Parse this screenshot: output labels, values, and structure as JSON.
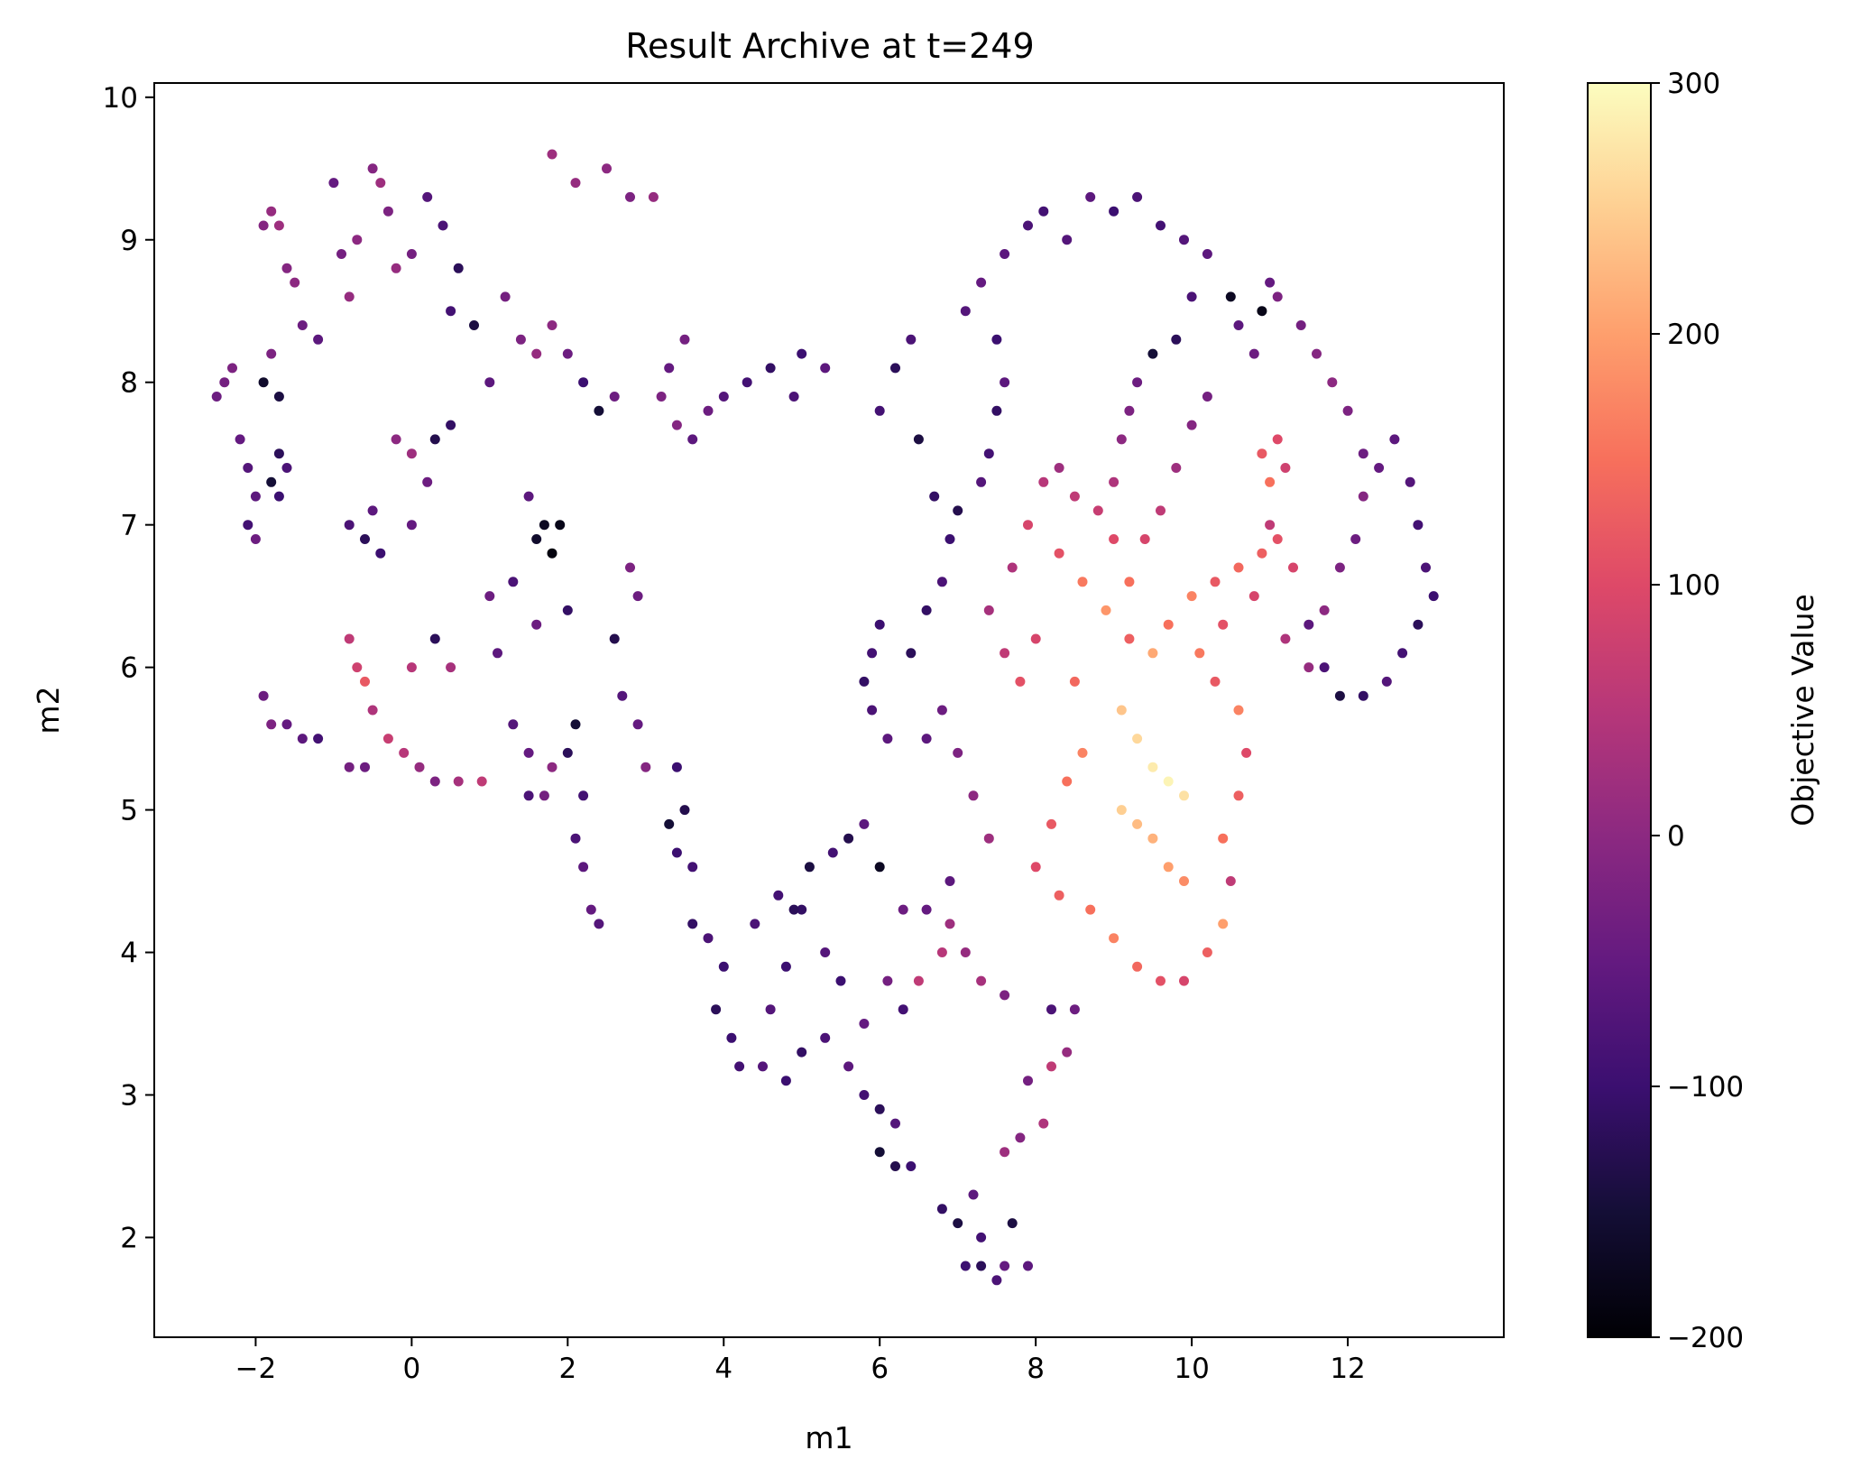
{
  "chart_data": {
    "type": "scatter",
    "title": "Result Archive at t=249",
    "xlabel": "m1",
    "ylabel": "m2",
    "xlim": [
      -3.3,
      14.0
    ],
    "ylim": [
      1.3,
      10.1
    ],
    "xticks": [
      -2,
      0,
      2,
      4,
      6,
      8,
      10,
      12
    ],
    "yticks": [
      2,
      3,
      4,
      5,
      6,
      7,
      8,
      9,
      10
    ],
    "grid": false,
    "legend": "none",
    "colormap": "magma",
    "colorbar": {
      "label": "Objective Value",
      "range": [
        -200,
        300
      ],
      "ticks": [
        -200,
        -100,
        0,
        100,
        200,
        300
      ],
      "tick_labels": [
        "−200",
        "−100",
        "0",
        "100",
        "200",
        "300"
      ]
    },
    "points": [
      [
        -2.4,
        8.0,
        -30
      ],
      [
        -2.5,
        7.9,
        -40
      ],
      [
        -2.3,
        8.1,
        -20
      ],
      [
        -2.2,
        7.6,
        -50
      ],
      [
        -2.1,
        7.4,
        -70
      ],
      [
        -2.0,
        7.2,
        -60
      ],
      [
        -2.1,
        7.0,
        -90
      ],
      [
        -2.0,
        6.9,
        -40
      ],
      [
        -1.8,
        7.3,
        -150
      ],
      [
        -1.7,
        7.5,
        -120
      ],
      [
        -1.7,
        7.2,
        -100
      ],
      [
        -1.6,
        7.4,
        -80
      ],
      [
        -1.9,
        8.0,
        -160
      ],
      [
        -1.7,
        7.9,
        -140
      ],
      [
        -1.8,
        8.2,
        -20
      ],
      [
        -1.9,
        9.1,
        -10
      ],
      [
        -1.8,
        9.2,
        10
      ],
      [
        -1.7,
        9.1,
        20
      ],
      [
        -1.6,
        8.8,
        -10
      ],
      [
        -1.5,
        8.7,
        0
      ],
      [
        -1.4,
        8.4,
        -40
      ],
      [
        -1.2,
        8.3,
        -60
      ],
      [
        -1.0,
        9.4,
        -50
      ],
      [
        -0.9,
        8.9,
        -30
      ],
      [
        -0.8,
        8.6,
        10
      ],
      [
        -0.7,
        9.0,
        0
      ],
      [
        -0.5,
        9.5,
        -10
      ],
      [
        -0.4,
        9.4,
        20
      ],
      [
        -0.3,
        9.2,
        -20
      ],
      [
        -0.2,
        8.8,
        10
      ],
      [
        0.0,
        8.9,
        -30
      ],
      [
        0.2,
        9.3,
        -70
      ],
      [
        0.4,
        9.1,
        -80
      ],
      [
        0.5,
        8.5,
        -90
      ],
      [
        0.6,
        8.8,
        -120
      ],
      [
        0.8,
        8.4,
        -140
      ],
      [
        1.0,
        8.0,
        -60
      ],
      [
        1.2,
        8.6,
        -30
      ],
      [
        1.4,
        8.3,
        -20
      ],
      [
        1.6,
        8.2,
        10
      ],
      [
        1.8,
        8.4,
        0
      ],
      [
        2.0,
        8.2,
        -40
      ],
      [
        2.2,
        8.0,
        -100
      ],
      [
        2.4,
        7.8,
        -150
      ],
      [
        2.6,
        7.9,
        -40
      ],
      [
        1.8,
        9.6,
        20
      ],
      [
        2.1,
        9.4,
        10
      ],
      [
        2.5,
        9.5,
        0
      ],
      [
        2.8,
        9.3,
        -20
      ],
      [
        3.1,
        9.3,
        10
      ],
      [
        -0.5,
        7.1,
        -60
      ],
      [
        -0.6,
        6.9,
        -120
      ],
      [
        -0.4,
        6.8,
        -100
      ],
      [
        -0.8,
        7.0,
        -80
      ],
      [
        0.0,
        7.0,
        -50
      ],
      [
        0.3,
        7.6,
        -130
      ],
      [
        0.5,
        7.7,
        -110
      ],
      [
        0.2,
        7.3,
        -40
      ],
      [
        -0.2,
        7.6,
        0
      ],
      [
        0.0,
        7.5,
        20
      ],
      [
        -0.8,
        6.2,
        60
      ],
      [
        -0.7,
        6.0,
        80
      ],
      [
        -0.6,
        5.9,
        120
      ],
      [
        -0.5,
        5.7,
        40
      ],
      [
        -0.3,
        5.5,
        70
      ],
      [
        -0.1,
        5.4,
        50
      ],
      [
        0.1,
        5.3,
        10
      ],
      [
        0.3,
        5.2,
        -20
      ],
      [
        0.6,
        5.2,
        30
      ],
      [
        0.9,
        5.2,
        60
      ],
      [
        -1.9,
        5.8,
        -40
      ],
      [
        -1.8,
        5.6,
        -20
      ],
      [
        -1.6,
        5.6,
        -50
      ],
      [
        -1.4,
        5.5,
        -60
      ],
      [
        -1.2,
        5.5,
        -90
      ],
      [
        -0.8,
        5.3,
        -30
      ],
      [
        -0.6,
        5.3,
        -40
      ],
      [
        0.0,
        6.0,
        50
      ],
      [
        0.3,
        6.2,
        -120
      ],
      [
        0.5,
        6.0,
        30
      ],
      [
        1.0,
        6.5,
        -40
      ],
      [
        1.1,
        6.1,
        -60
      ],
      [
        1.3,
        5.6,
        -70
      ],
      [
        1.5,
        5.4,
        -50
      ],
      [
        1.5,
        5.1,
        -80
      ],
      [
        1.7,
        5.1,
        -30
      ],
      [
        1.8,
        5.3,
        0
      ],
      [
        2.0,
        5.4,
        -120
      ],
      [
        2.1,
        5.6,
        -150
      ],
      [
        2.2,
        5.1,
        -90
      ],
      [
        1.7,
        7.0,
        -170
      ],
      [
        1.6,
        6.9,
        -160
      ],
      [
        1.8,
        6.8,
        -190
      ],
      [
        1.9,
        7.0,
        -180
      ],
      [
        1.5,
        7.2,
        -60
      ],
      [
        1.3,
        6.6,
        -80
      ],
      [
        2.0,
        6.4,
        -110
      ],
      [
        1.6,
        6.3,
        -40
      ],
      [
        2.1,
        4.8,
        -80
      ],
      [
        2.2,
        4.6,
        -60
      ],
      [
        2.3,
        4.3,
        -50
      ],
      [
        2.4,
        4.2,
        -70
      ],
      [
        2.8,
        6.7,
        -20
      ],
      [
        2.9,
        6.5,
        -40
      ],
      [
        2.6,
        6.2,
        -130
      ],
      [
        2.7,
        5.8,
        -70
      ],
      [
        2.9,
        5.6,
        -50
      ],
      [
        3.0,
        5.3,
        -10
      ],
      [
        3.3,
        8.1,
        -50
      ],
      [
        3.5,
        8.3,
        -30
      ],
      [
        3.2,
        7.9,
        -20
      ],
      [
        3.4,
        7.7,
        -10
      ],
      [
        3.6,
        7.6,
        -60
      ],
      [
        3.8,
        7.8,
        -40
      ],
      [
        4.0,
        7.9,
        -70
      ],
      [
        4.3,
        8.0,
        -90
      ],
      [
        4.6,
        8.1,
        -110
      ],
      [
        5.0,
        8.2,
        -100
      ],
      [
        5.3,
        8.1,
        -60
      ],
      [
        4.9,
        7.9,
        -80
      ],
      [
        3.4,
        5.3,
        -100
      ],
      [
        3.3,
        4.9,
        -150
      ],
      [
        3.5,
        5.0,
        -130
      ],
      [
        3.4,
        4.7,
        -100
      ],
      [
        3.6,
        4.6,
        -90
      ],
      [
        3.6,
        4.2,
        -110
      ],
      [
        3.8,
        4.1,
        -80
      ],
      [
        4.0,
        3.9,
        -100
      ],
      [
        3.9,
        3.6,
        -120
      ],
      [
        4.1,
        3.4,
        -100
      ],
      [
        4.2,
        3.2,
        -90
      ],
      [
        4.5,
        3.2,
        -70
      ],
      [
        4.8,
        3.1,
        -100
      ],
      [
        5.0,
        3.3,
        -110
      ],
      [
        5.3,
        3.4,
        -80
      ],
      [
        5.6,
        3.2,
        -60
      ],
      [
        5.8,
        3.0,
        -90
      ],
      [
        6.0,
        2.9,
        -120
      ],
      [
        6.2,
        2.8,
        -70
      ],
      [
        6.0,
        2.6,
        -150
      ],
      [
        6.2,
        2.5,
        -130
      ],
      [
        6.4,
        2.5,
        -100
      ],
      [
        6.8,
        2.2,
        -110
      ],
      [
        7.0,
        2.1,
        -140
      ],
      [
        7.2,
        2.3,
        -60
      ],
      [
        7.3,
        2.0,
        -90
      ],
      [
        7.1,
        1.8,
        -100
      ],
      [
        7.3,
        1.8,
        -120
      ],
      [
        7.5,
        1.7,
        -80
      ],
      [
        7.6,
        1.8,
        -50
      ],
      [
        7.7,
        2.1,
        -140
      ],
      [
        7.9,
        1.8,
        -60
      ],
      [
        7.6,
        2.6,
        20
      ],
      [
        7.8,
        2.7,
        -10
      ],
      [
        8.1,
        2.8,
        40
      ],
      [
        7.9,
        3.1,
        -30
      ],
      [
        8.2,
        3.2,
        60
      ],
      [
        8.4,
        3.3,
        10
      ],
      [
        8.5,
        3.6,
        -40
      ],
      [
        8.2,
        3.6,
        -80
      ],
      [
        6.9,
        4.2,
        20
      ],
      [
        6.8,
        4.0,
        50
      ],
      [
        7.1,
        4.0,
        10
      ],
      [
        7.3,
        3.8,
        30
      ],
      [
        7.6,
        3.7,
        -20
      ],
      [
        6.5,
        3.8,
        60
      ],
      [
        6.3,
        3.6,
        -90
      ],
      [
        6.1,
        3.8,
        -30
      ],
      [
        5.8,
        3.5,
        -50
      ],
      [
        5.5,
        3.8,
        -100
      ],
      [
        5.3,
        4.0,
        -70
      ],
      [
        5.0,
        4.3,
        -110
      ],
      [
        5.1,
        4.6,
        -140
      ],
      [
        5.4,
        4.7,
        -90
      ],
      [
        5.6,
        4.8,
        -130
      ],
      [
        5.8,
        4.9,
        -60
      ],
      [
        6.0,
        4.6,
        -170
      ],
      [
        6.3,
        4.3,
        -40
      ],
      [
        6.6,
        4.3,
        -50
      ],
      [
        6.9,
        4.5,
        -60
      ],
      [
        4.4,
        4.2,
        -80
      ],
      [
        4.7,
        4.4,
        -90
      ],
      [
        4.9,
        4.3,
        -120
      ],
      [
        4.8,
        3.9,
        -100
      ],
      [
        4.6,
        3.6,
        -70
      ],
      [
        5.8,
        5.9,
        -110
      ],
      [
        5.9,
        6.1,
        -90
      ],
      [
        6.0,
        6.3,
        -100
      ],
      [
        5.9,
        5.7,
        -80
      ],
      [
        6.1,
        5.5,
        -60
      ],
      [
        6.4,
        6.1,
        -120
      ],
      [
        6.6,
        6.4,
        -110
      ],
      [
        6.8,
        6.6,
        -80
      ],
      [
        6.9,
        6.9,
        -100
      ],
      [
        7.0,
        7.1,
        -130
      ],
      [
        7.3,
        7.3,
        -70
      ],
      [
        7.4,
        7.5,
        -90
      ],
      [
        7.5,
        7.8,
        -110
      ],
      [
        7.6,
        8.0,
        -60
      ],
      [
        7.5,
        8.3,
        -100
      ],
      [
        6.6,
        5.5,
        -60
      ],
      [
        6.8,
        5.7,
        -40
      ],
      [
        7.0,
        5.4,
        -20
      ],
      [
        7.2,
        5.1,
        0
      ],
      [
        7.4,
        4.8,
        20
      ],
      [
        6.4,
        8.3,
        -80
      ],
      [
        6.2,
        8.1,
        -120
      ],
      [
        6.0,
        7.8,
        -90
      ],
      [
        6.5,
        7.6,
        -140
      ],
      [
        6.7,
        7.2,
        -110
      ],
      [
        7.1,
        8.5,
        -70
      ],
      [
        7.3,
        8.7,
        -50
      ],
      [
        7.6,
        8.9,
        -60
      ],
      [
        7.9,
        9.1,
        -80
      ],
      [
        8.1,
        9.2,
        -90
      ],
      [
        8.4,
        9.0,
        -70
      ],
      [
        8.7,
        9.3,
        -60
      ],
      [
        9.0,
        9.2,
        -100
      ],
      [
        9.3,
        9.3,
        -80
      ],
      [
        9.6,
        9.1,
        -90
      ],
      [
        9.9,
        9.0,
        -70
      ],
      [
        10.2,
        8.9,
        -60
      ],
      [
        10.0,
        8.6,
        -80
      ],
      [
        9.8,
        8.3,
        -120
      ],
      [
        9.5,
        8.2,
        -150
      ],
      [
        9.3,
        8.0,
        -40
      ],
      [
        9.2,
        7.8,
        -20
      ],
      [
        9.1,
        7.6,
        0
      ],
      [
        9.0,
        7.3,
        40
      ],
      [
        8.8,
        7.1,
        70
      ],
      [
        8.5,
        7.2,
        60
      ],
      [
        8.3,
        7.4,
        20
      ],
      [
        8.1,
        7.3,
        50
      ],
      [
        7.9,
        7.0,
        90
      ],
      [
        7.7,
        6.7,
        40
      ],
      [
        8.3,
        6.8,
        110
      ],
      [
        8.6,
        6.6,
        160
      ],
      [
        8.9,
        6.4,
        190
      ],
      [
        9.2,
        6.2,
        130
      ],
      [
        9.5,
        6.1,
        210
      ],
      [
        9.7,
        6.3,
        150
      ],
      [
        10.0,
        6.5,
        170
      ],
      [
        10.3,
        6.6,
        120
      ],
      [
        10.6,
        6.7,
        140
      ],
      [
        10.8,
        6.5,
        90
      ],
      [
        9.1,
        5.7,
        240
      ],
      [
        9.3,
        5.5,
        260
      ],
      [
        9.5,
        5.3,
        280
      ],
      [
        9.7,
        5.2,
        290
      ],
      [
        9.9,
        5.1,
        270
      ],
      [
        9.1,
        5.0,
        250
      ],
      [
        9.3,
        4.9,
        230
      ],
      [
        9.5,
        4.8,
        220
      ],
      [
        9.7,
        4.6,
        200
      ],
      [
        9.9,
        4.5,
        180
      ],
      [
        8.6,
        5.4,
        170
      ],
      [
        8.4,
        5.2,
        150
      ],
      [
        8.2,
        4.9,
        120
      ],
      [
        8.0,
        4.6,
        100
      ],
      [
        8.3,
        4.4,
        130
      ],
      [
        8.7,
        4.3,
        150
      ],
      [
        9.0,
        4.1,
        170
      ],
      [
        9.3,
        3.9,
        140
      ],
      [
        9.6,
        3.8,
        110
      ],
      [
        9.9,
        3.8,
        90
      ],
      [
        10.2,
        4.0,
        130
      ],
      [
        10.4,
        4.2,
        200
      ],
      [
        10.5,
        4.5,
        60
      ],
      [
        10.4,
        4.8,
        150
      ],
      [
        10.6,
        5.1,
        130
      ],
      [
        10.7,
        5.4,
        100
      ],
      [
        10.6,
        5.7,
        170
      ],
      [
        10.3,
        5.9,
        120
      ],
      [
        10.1,
        6.1,
        160
      ],
      [
        10.4,
        6.3,
        110
      ],
      [
        8.0,
        6.2,
        90
      ],
      [
        7.8,
        5.9,
        110
      ],
      [
        7.6,
        6.1,
        60
      ],
      [
        7.4,
        6.4,
        30
      ],
      [
        8.5,
        5.9,
        140
      ],
      [
        10.9,
        7.5,
        120
      ],
      [
        11.0,
        7.3,
        150
      ],
      [
        11.1,
        7.6,
        100
      ],
      [
        11.2,
        7.4,
        80
      ],
      [
        11.0,
        7.0,
        60
      ],
      [
        10.9,
        6.8,
        130
      ],
      [
        11.1,
        6.9,
        110
      ],
      [
        11.3,
        6.7,
        90
      ],
      [
        11.2,
        6.2,
        40
      ],
      [
        11.5,
        6.0,
        10
      ],
      [
        11.7,
        6.4,
        0
      ],
      [
        11.9,
        6.7,
        -20
      ],
      [
        12.1,
        6.9,
        -40
      ],
      [
        12.2,
        7.2,
        -10
      ],
      [
        12.4,
        7.4,
        -50
      ],
      [
        12.6,
        7.6,
        -60
      ],
      [
        12.8,
        7.3,
        -70
      ],
      [
        12.9,
        7.0,
        -90
      ],
      [
        13.0,
        6.7,
        -80
      ],
      [
        13.1,
        6.5,
        -100
      ],
      [
        12.9,
        6.3,
        -120
      ],
      [
        12.7,
        6.1,
        -90
      ],
      [
        12.5,
        5.9,
        -70
      ],
      [
        12.2,
        5.8,
        -110
      ],
      [
        11.9,
        5.8,
        -140
      ],
      [
        11.7,
        6.0,
        -80
      ],
      [
        11.5,
        6.3,
        -60
      ],
      [
        11.4,
        8.4,
        -30
      ],
      [
        11.6,
        8.2,
        -10
      ],
      [
        11.8,
        8.0,
        0
      ],
      [
        12.0,
        7.8,
        -20
      ],
      [
        12.2,
        7.5,
        -40
      ],
      [
        11.0,
        8.7,
        -50
      ],
      [
        10.9,
        8.5,
        -180
      ],
      [
        11.1,
        8.6,
        -20
      ],
      [
        10.5,
        8.6,
        -170
      ],
      [
        10.6,
        8.4,
        -60
      ],
      [
        10.8,
        8.2,
        -40
      ],
      [
        10.2,
        7.9,
        -30
      ],
      [
        10.0,
        7.7,
        -10
      ],
      [
        9.8,
        7.4,
        20
      ],
      [
        9.6,
        7.1,
        60
      ],
      [
        9.4,
        6.9,
        90
      ],
      [
        9.2,
        6.6,
        150
      ],
      [
        9.0,
        6.9,
        100
      ]
    ]
  }
}
